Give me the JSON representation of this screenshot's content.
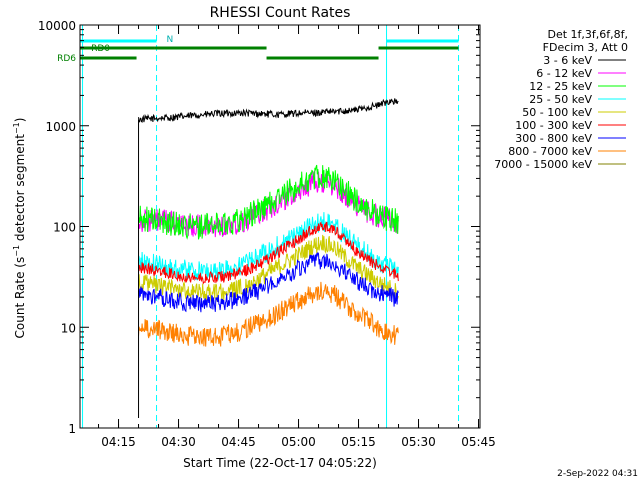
{
  "chart_data": {
    "type": "line",
    "title": "RHESSI Count Rates",
    "xlabel": "Start Time (22-Oct-17 04:05:22)",
    "ylabel": "Count Rate (s^-1 detector segment^-1)",
    "ylabel_parts": {
      "pre": "Count Rate (s",
      "sup1": "−1",
      "mid": " detector segment",
      "sup2": "−1",
      "post": ")"
    },
    "y_scale": "log",
    "ylim": [
      1,
      10000
    ],
    "xlim": [
      "04:05:22",
      "05:45:22"
    ],
    "x_ticks": [
      "04:15",
      "04:30",
      "04:45",
      "05:00",
      "05:15",
      "05:30",
      "05:45"
    ],
    "y_ticks": [
      "1",
      "10",
      "100",
      "1000",
      "10000"
    ],
    "legend_position": "right",
    "legend_header": [
      "Det 1f,3f,6f,8f,",
      "FDecim 3, Att 0"
    ],
    "series": [
      {
        "name": "3 - 6 keV",
        "color": "#000000",
        "x": [
          "04:20:00",
          "04:25:00",
          "04:30:00",
          "04:35:00",
          "04:40:00",
          "04:45:00",
          "04:50:00",
          "04:55:00",
          "05:00:00",
          "05:05:00",
          "05:10:00",
          "05:15:00",
          "05:20:00",
          "05:23:00",
          "05:25:00"
        ],
        "y": [
          1150,
          1190,
          1220,
          1280,
          1320,
          1340,
          1320,
          1290,
          1330,
          1350,
          1390,
          1450,
          1600,
          1780,
          1700
        ]
      },
      {
        "name": "6 - 12 keV",
        "color": "#ff00ff",
        "x": [
          "04:20:00",
          "04:25:00",
          "04:30:00",
          "04:35:00",
          "04:40:00",
          "04:45:00",
          "04:50:00",
          "04:55:00",
          "05:00:00",
          "05:03:00",
          "05:06:00",
          "05:09:00",
          "05:12:00",
          "05:15:00",
          "05:20:00",
          "05:25:00"
        ],
        "y": [
          115,
          115,
          105,
          100,
          100,
          110,
          135,
          175,
          225,
          265,
          280,
          250,
          200,
          160,
          125,
          110
        ]
      },
      {
        "name": "12 - 25 keV",
        "color": "#00ff00",
        "x": [
          "04:20:00",
          "04:25:00",
          "04:30:00",
          "04:35:00",
          "04:40:00",
          "04:45:00",
          "04:50:00",
          "04:55:00",
          "05:00:00",
          "05:03:00",
          "05:06:00",
          "05:09:00",
          "05:12:00",
          "05:15:00",
          "05:20:00",
          "05:25:00"
        ],
        "y": [
          120,
          115,
          105,
          100,
          105,
          115,
          145,
          190,
          250,
          300,
          320,
          285,
          220,
          170,
          130,
          110
        ]
      },
      {
        "name": "25 - 50 keV",
        "color": "#00ffff",
        "x": [
          "04:20:00",
          "04:25:00",
          "04:30:00",
          "04:35:00",
          "04:40:00",
          "04:45:00",
          "04:50:00",
          "04:55:00",
          "05:00:00",
          "05:03:00",
          "05:06:00",
          "05:09:00",
          "05:12:00",
          "05:15:00",
          "05:20:00",
          "05:25:00"
        ],
        "y": [
          45,
          42,
          38,
          36,
          36,
          40,
          50,
          65,
          85,
          100,
          112,
          100,
          80,
          62,
          45,
          35
        ]
      },
      {
        "name": "50 - 100 keV",
        "color": "#cccc00",
        "x": [
          "04:20:00",
          "04:25:00",
          "04:30:00",
          "04:35:00",
          "04:40:00",
          "04:45:00",
          "04:50:00",
          "04:55:00",
          "05:00:00",
          "05:03:00",
          "05:06:00",
          "05:09:00",
          "05:12:00",
          "05:15:00",
          "05:20:00",
          "05:25:00"
        ],
        "y": [
          28,
          26,
          24,
          22,
          22,
          24,
          30,
          40,
          52,
          62,
          70,
          62,
          48,
          38,
          28,
          22
        ]
      },
      {
        "name": "100 - 300 keV",
        "color": "#ff0000",
        "x": [
          "04:20:00",
          "04:25:00",
          "04:30:00",
          "04:35:00",
          "04:40:00",
          "04:45:00",
          "04:50:00",
          "04:55:00",
          "05:00:00",
          "05:03:00",
          "05:06:00",
          "05:09:00",
          "05:12:00",
          "05:15:00",
          "05:20:00",
          "05:25:00"
        ],
        "y": [
          40,
          36,
          33,
          31,
          31,
          34,
          42,
          56,
          75,
          90,
          102,
          92,
          72,
          55,
          40,
          32
        ]
      },
      {
        "name": "300 - 800 keV",
        "color": "#0000ff",
        "x": [
          "04:20:00",
          "04:25:00",
          "04:30:00",
          "04:35:00",
          "04:40:00",
          "04:45:00",
          "04:50:00",
          "04:55:00",
          "05:00:00",
          "05:03:00",
          "05:06:00",
          "05:09:00",
          "05:12:00",
          "05:15:00",
          "05:20:00",
          "05:25:00"
        ],
        "y": [
          21,
          20,
          18,
          17,
          17,
          19,
          23,
          30,
          38,
          43,
          46,
          42,
          34,
          28,
          22,
          19
        ]
      },
      {
        "name": "800 - 7000 keV",
        "color": "#ff8000",
        "x": [
          "04:20:00",
          "04:25:00",
          "04:30:00",
          "04:35:00",
          "04:40:00",
          "04:45:00",
          "04:50:00",
          "04:55:00",
          "05:00:00",
          "05:03:00",
          "05:06:00",
          "05:09:00",
          "05:12:00",
          "05:15:00",
          "05:20:00",
          "05:25:00"
        ],
        "y": [
          10,
          9.5,
          8.5,
          8,
          8,
          9,
          11,
          14,
          18,
          21,
          23,
          21,
          17,
          13,
          10,
          8
        ]
      },
      {
        "name": "7000 - 15000 keV",
        "color": "#808000",
        "x": [],
        "y": []
      }
    ],
    "markers": {
      "cyan_vertical_solid": [
        "04:06:00",
        "05:22:00"
      ],
      "cyan_vertical_dashed": [
        "04:24:30",
        "05:40:00"
      ]
    },
    "status_bars": {
      "night": {
        "label": "N",
        "color": "#00ffff",
        "segments": [
          [
            "04:05:22",
            "04:24:30"
          ],
          [
            "05:22:00",
            "05:40:00"
          ]
        ]
      },
      "rd0": {
        "label": "RD0",
        "color": "#008000",
        "segments": [
          [
            "04:05:22",
            "04:24:00"
          ],
          [
            "04:24:00",
            "04:52:00"
          ],
          [
            "05:20:00",
            "05:40:00"
          ]
        ]
      },
      "rd6": {
        "label": "RD6",
        "color": "#008000",
        "segments": [
          [
            "04:05:22",
            "04:19:30"
          ],
          [
            "04:52:00",
            "05:20:00"
          ]
        ]
      }
    }
  },
  "footer": {
    "date": "2-Sep-2022 04:31"
  },
  "colors": {
    "axis": "#000000",
    "background": "#ffffff"
  }
}
